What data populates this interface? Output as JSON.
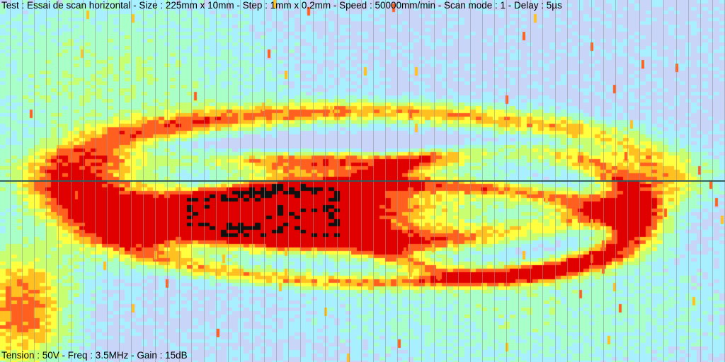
{
  "scan": {
    "header_text": "Test : Essai de scan horizontal - Size : 225mm x 10mm - Step : 1mm x 0.2mm - Speed : 50000mm/min - Scan mode : 1 - Delay : 5µs",
    "footer_text": "Tension : 50V - Freq : 3.5MHz - Gain : 15dB"
  },
  "colors": {
    "background": "#bcd6fb",
    "cursor_line": "#2f5c5c",
    "grid_line": "#969696",
    "palette": [
      "#c8d4f8",
      "#a8f0ff",
      "#a8ffc8",
      "#c8ff70",
      "#ffff40",
      "#ffc020",
      "#ff6020",
      "#e00000",
      "#101010"
    ]
  }
}
